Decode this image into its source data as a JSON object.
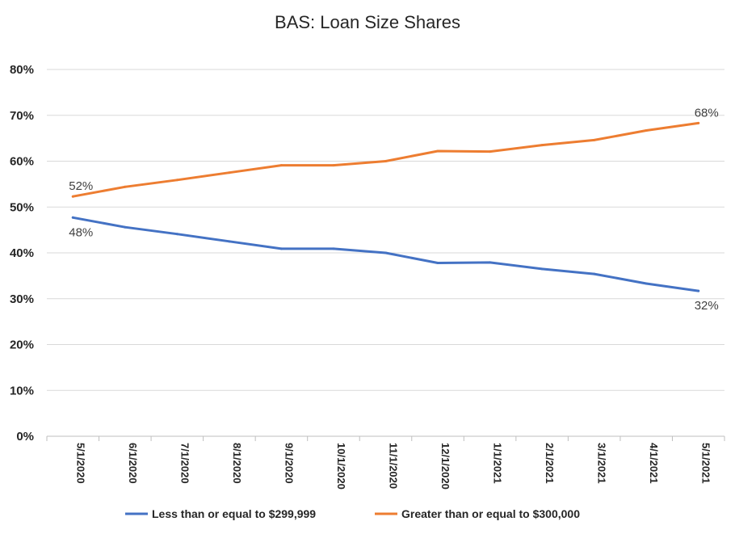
{
  "chart_data": {
    "type": "line",
    "title": "BAS: Loan Size Shares",
    "xlabel": "",
    "ylabel": "",
    "ylim": [
      0,
      80
    ],
    "y_ticks": [
      "0%",
      "10%",
      "20%",
      "30%",
      "40%",
      "50%",
      "60%",
      "70%",
      "80%"
    ],
    "grid": true,
    "legend_position": "bottom",
    "categories": [
      "5/1/2020",
      "6/1/2020",
      "7/1/2020",
      "8/1/2020",
      "9/1/2020",
      "10/1/2020",
      "11/1/2020",
      "12/1/2020",
      "1/1/2021",
      "2/1/2021",
      "3/1/2021",
      "4/1/2021",
      "5/1/2021"
    ],
    "series": [
      {
        "name": "Less than or equal to $299,999",
        "color": "#4472c4",
        "values": [
          47.7,
          45.6,
          44.1,
          42.5,
          40.9,
          40.9,
          40.0,
          37.8,
          37.9,
          36.5,
          35.4,
          33.3,
          31.7
        ],
        "data_labels": [
          {
            "index": 0,
            "text": "48%"
          },
          {
            "index": 12,
            "text": "32%"
          }
        ]
      },
      {
        "name": "Greater than or equal to $300,000",
        "color": "#ed7d31",
        "values": [
          52.3,
          54.4,
          55.9,
          57.5,
          59.1,
          59.1,
          60.0,
          62.2,
          62.1,
          63.5,
          64.6,
          66.7,
          68.3
        ],
        "data_labels": [
          {
            "index": 0,
            "text": "52%"
          },
          {
            "index": 12,
            "text": "68%"
          }
        ]
      }
    ]
  }
}
